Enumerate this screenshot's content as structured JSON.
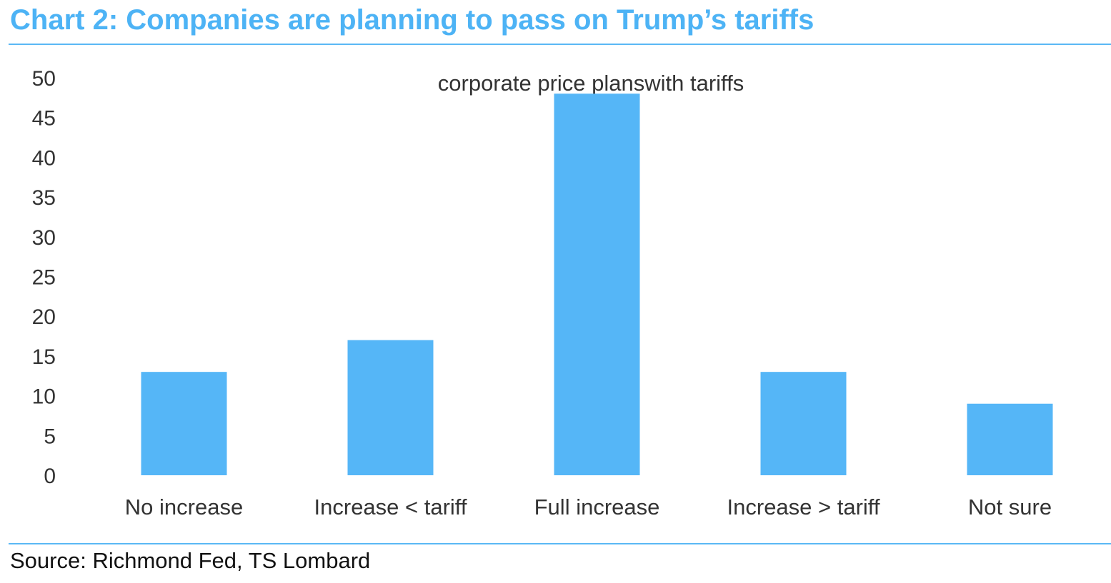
{
  "title": "Chart 2: Companies are planning to pass on Trump’s tariffs",
  "source": "Source: Richmond Fed, TS Lombard",
  "chart_data": {
    "type": "bar",
    "title": "corporate price planswith tariffs",
    "xlabel": "",
    "ylabel": "",
    "categories": [
      "No increase",
      "Increase < tariff",
      "Full increase",
      "Increase > tariff",
      "Not sure"
    ],
    "values": [
      13,
      17,
      48,
      13,
      9
    ],
    "ylim": [
      0,
      50
    ],
    "yticks": [
      0,
      5,
      10,
      15,
      20,
      25,
      30,
      35,
      40,
      45,
      50
    ],
    "grid": false,
    "legend": "none",
    "bar_color": "#55b6f7",
    "title_color": "#4db3f5"
  }
}
